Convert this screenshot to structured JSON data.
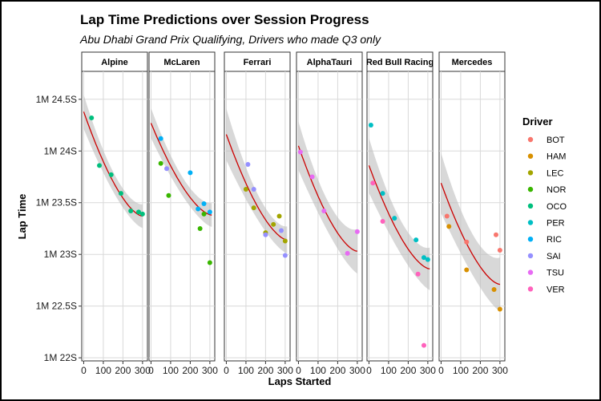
{
  "chart_data": {
    "type": "scatter",
    "title": "Lap Time Predictions over Session Progress",
    "subtitle": "Abu Dhabi Grand Prix Qualifying, Drivers who made Q3 only",
    "xlabel": "Laps Started",
    "ylabel": "Lap Time",
    "xlim": [
      -10,
      325
    ],
    "ylim": [
      21.97,
      24.77
    ],
    "x_ticks": [
      0,
      100,
      200,
      300
    ],
    "x_tick_labels": [
      "0",
      "100",
      "200",
      "300"
    ],
    "y_ticks": [
      22,
      22.5,
      23,
      23.5,
      24,
      24.5
    ],
    "y_tick_labels": [
      "1M 22S",
      "1M 22.5S",
      "1M 23S",
      "1M 23.5S",
      "1M 24S",
      "1M 24.5S"
    ],
    "grid": true,
    "legend": {
      "title": "Driver",
      "position": "right",
      "entries": [
        {
          "name": "BOT",
          "color": "#F8766D"
        },
        {
          "name": "HAM",
          "color": "#D89000"
        },
        {
          "name": "LEC",
          "color": "#A3A500"
        },
        {
          "name": "NOR",
          "color": "#39B600"
        },
        {
          "name": "OCO",
          "color": "#00BF7D"
        },
        {
          "name": "PER",
          "color": "#00BFC4"
        },
        {
          "name": "RIC",
          "color": "#00B0F6"
        },
        {
          "name": "SAI",
          "color": "#9590FF"
        },
        {
          "name": "TSU",
          "color": "#E76BF3"
        },
        {
          "name": "VER",
          "color": "#FF62BC"
        }
      ]
    },
    "fit_color": "#CC0000",
    "ribbon_color": "#BEBEBE",
    "panels": [
      {
        "team": "Alpine",
        "points": [
          {
            "driver": "OCO",
            "x": 40,
            "y": 24.32
          },
          {
            "driver": "OCO",
            "x": 80,
            "y": 23.86
          },
          {
            "driver": "OCO",
            "x": 140,
            "y": 23.77
          },
          {
            "driver": "OCO",
            "x": 190,
            "y": 23.59
          },
          {
            "driver": "OCO",
            "x": 240,
            "y": 23.42
          },
          {
            "driver": "OCO",
            "x": 280,
            "y": 23.41
          },
          {
            "driver": "OCO",
            "x": 300,
            "y": 23.39
          }
        ],
        "fit": {
          "x": [
            0,
            300
          ],
          "y_start": 24.38,
          "y_end": 23.37
        },
        "band": {
          "start": 0.14,
          "mid": 0.05,
          "end": 0.09
        }
      },
      {
        "team": "McLaren",
        "points": [
          {
            "driver": "RIC",
            "x": 50,
            "y": 24.12
          },
          {
            "driver": "NOR",
            "x": 50,
            "y": 23.88
          },
          {
            "driver": "SAI",
            "x": 80,
            "y": 23.83
          },
          {
            "driver": "NOR",
            "x": 90,
            "y": 23.57
          },
          {
            "driver": "RIC",
            "x": 200,
            "y": 23.79
          },
          {
            "driver": "RIC",
            "x": 240,
            "y": 23.44
          },
          {
            "driver": "RIC",
            "x": 270,
            "y": 23.49
          },
          {
            "driver": "NOR",
            "x": 270,
            "y": 23.39
          },
          {
            "driver": "RIC",
            "x": 300,
            "y": 23.41
          },
          {
            "driver": "NOR",
            "x": 250,
            "y": 23.25
          },
          {
            "driver": "NOR",
            "x": 300,
            "y": 22.92
          }
        ],
        "fit": {
          "x": [
            0,
            310
          ],
          "y_start": 24.27,
          "y_end": 23.38
        },
        "band": {
          "start": 0.12,
          "mid": 0.05,
          "end": 0.09
        }
      },
      {
        "team": "Ferrari",
        "points": [
          {
            "driver": "SAI",
            "x": 110,
            "y": 23.87
          },
          {
            "driver": "SAI",
            "x": 140,
            "y": 23.63
          },
          {
            "driver": "LEC",
            "x": 100,
            "y": 23.63
          },
          {
            "driver": "LEC",
            "x": 140,
            "y": 23.45
          },
          {
            "driver": "LEC",
            "x": 200,
            "y": 23.21
          },
          {
            "driver": "SAI",
            "x": 200,
            "y": 23.19
          },
          {
            "driver": "LEC",
            "x": 240,
            "y": 23.29
          },
          {
            "driver": "LEC",
            "x": 270,
            "y": 23.37
          },
          {
            "driver": "SAI",
            "x": 280,
            "y": 23.23
          },
          {
            "driver": "LEC",
            "x": 300,
            "y": 23.13
          },
          {
            "driver": "SAI",
            "x": 300,
            "y": 22.99
          }
        ],
        "fit": {
          "x": [
            0,
            310
          ],
          "y_start": 24.16,
          "y_end": 23.14
        },
        "band": {
          "start": 0.22,
          "mid": 0.06,
          "end": 0.1
        }
      },
      {
        "team": "AlphaTauri",
        "points": [
          {
            "driver": "TSU",
            "x": 10,
            "y": 23.99
          },
          {
            "driver": "TSU",
            "x": 70,
            "y": 23.75
          },
          {
            "driver": "TSU",
            "x": 130,
            "y": 23.42
          },
          {
            "driver": "TSU",
            "x": 250,
            "y": 23.01
          },
          {
            "driver": "TSU",
            "x": 300,
            "y": 23.22
          }
        ],
        "fit": {
          "x": [
            0,
            300
          ],
          "y_start": 24.05,
          "y_end": 23.03
        },
        "band": {
          "start": 0.2,
          "mid": 0.07,
          "end": 0.18
        }
      },
      {
        "team": "Red Bull Racing",
        "points": [
          {
            "driver": "PER",
            "x": 10,
            "y": 24.25
          },
          {
            "driver": "VER",
            "x": 20,
            "y": 23.69
          },
          {
            "driver": "PER",
            "x": 70,
            "y": 23.59
          },
          {
            "driver": "VER",
            "x": 70,
            "y": 23.32
          },
          {
            "driver": "PER",
            "x": 130,
            "y": 23.35
          },
          {
            "driver": "PER",
            "x": 240,
            "y": 23.14
          },
          {
            "driver": "VER",
            "x": 250,
            "y": 22.81
          },
          {
            "driver": "PER",
            "x": 280,
            "y": 22.97
          },
          {
            "driver": "PER",
            "x": 300,
            "y": 22.95
          },
          {
            "driver": "VER",
            "x": 280,
            "y": 22.12
          }
        ],
        "fit": {
          "x": [
            0,
            310
          ],
          "y_start": 23.86,
          "y_end": 22.86
        },
        "band": {
          "start": 0.22,
          "mid": 0.09,
          "end": 0.16
        }
      },
      {
        "team": "Mercedes",
        "points": [
          {
            "driver": "BOT",
            "x": 30,
            "y": 23.37
          },
          {
            "driver": "HAM",
            "x": 40,
            "y": 23.27
          },
          {
            "driver": "BOT",
            "x": 130,
            "y": 23.12
          },
          {
            "driver": "HAM",
            "x": 130,
            "y": 22.85
          },
          {
            "driver": "BOT",
            "x": 280,
            "y": 23.19
          },
          {
            "driver": "BOT",
            "x": 300,
            "y": 23.04
          },
          {
            "driver": "HAM",
            "x": 270,
            "y": 22.66
          },
          {
            "driver": "HAM",
            "x": 300,
            "y": 22.47
          }
        ],
        "fit": {
          "x": [
            0,
            300
          ],
          "y_start": 23.69,
          "y_end": 22.71
        },
        "band": {
          "start": 0.23,
          "mid": 0.12,
          "end": 0.2
        }
      }
    ]
  }
}
